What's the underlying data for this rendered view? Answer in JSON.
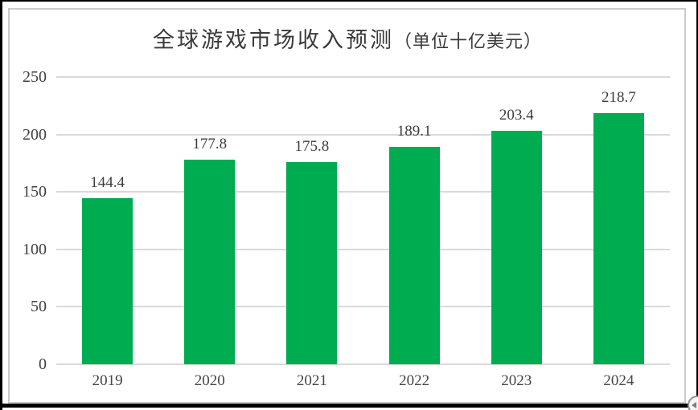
{
  "chart_data": {
    "type": "bar",
    "title": "全球游戏市场收入预测（单位十亿美元）",
    "title_main": "全球游戏市场收入预测",
    "title_unit": "（单位十亿美元）",
    "categories": [
      "2019",
      "2020",
      "2021",
      "2022",
      "2023",
      "2024"
    ],
    "values": [
      144.4,
      177.8,
      175.8,
      189.1,
      203.4,
      218.7
    ],
    "value_labels": [
      "144.4",
      "177.8",
      "175.8",
      "189.1",
      "203.4",
      "218.7"
    ],
    "xlabel": "",
    "ylabel": "",
    "ylim": [
      0,
      250
    ],
    "yticks": [
      250,
      200,
      150,
      100,
      50,
      0
    ],
    "grid": "horizontal",
    "legend": "none",
    "colors": {
      "bar": "#00AC50",
      "gridline": "#D9D9D9",
      "tick_text": "#404040",
      "title_text": "#3A3A3A",
      "frame_border": "#CBCBCB",
      "page_edge": "#000000"
    }
  },
  "widgets": {
    "layout_options_icon": "layout-options-circle"
  }
}
